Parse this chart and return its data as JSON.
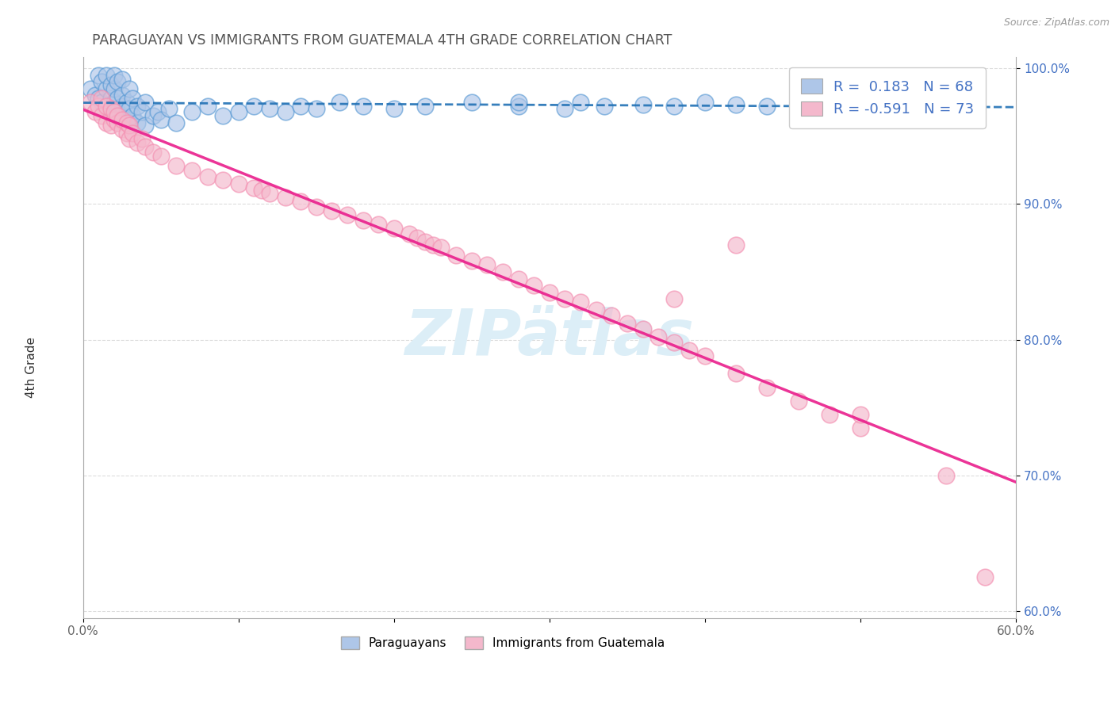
{
  "title": "PARAGUAYAN VS IMMIGRANTS FROM GUATEMALA 4TH GRADE CORRELATION CHART",
  "source": "Source: ZipAtlas.com",
  "ylabel": "4th Grade",
  "xmin": 0.0,
  "xmax": 0.6,
  "ymin": 0.595,
  "ymax": 1.008,
  "yticks": [
    0.6,
    0.7,
    0.8,
    0.9,
    1.0
  ],
  "ytick_labels": [
    "60.0%",
    "70.0%",
    "80.0%",
    "90.0%",
    "100.0%"
  ],
  "xticks": [
    0.0,
    0.1,
    0.2,
    0.3,
    0.4,
    0.5,
    0.6
  ],
  "xtick_labels": [
    "0.0%",
    "",
    "",
    "",
    "",
    "",
    "60.0%"
  ],
  "legend_line1": "R =  0.183   N = 68",
  "legend_line2": "R = -0.591   N = 73",
  "blue_face": "#aec6e8",
  "blue_edge": "#5b9bd5",
  "pink_face": "#f4b8cc",
  "pink_edge": "#f48fb1",
  "blue_line": "#2171b5",
  "pink_line": "#e91e8c",
  "legend_text_color": "#4472c4",
  "watermark_color": "#dceef7",
  "blue_x": [
    0.005,
    0.008,
    0.01,
    0.01,
    0.012,
    0.012,
    0.015,
    0.015,
    0.015,
    0.018,
    0.018,
    0.018,
    0.02,
    0.02,
    0.02,
    0.02,
    0.022,
    0.022,
    0.022,
    0.025,
    0.025,
    0.025,
    0.025,
    0.028,
    0.028,
    0.03,
    0.03,
    0.03,
    0.032,
    0.032,
    0.035,
    0.035,
    0.038,
    0.04,
    0.04,
    0.045,
    0.048,
    0.05,
    0.055,
    0.06,
    0.07,
    0.08,
    0.09,
    0.1,
    0.11,
    0.12,
    0.13,
    0.14,
    0.15,
    0.165,
    0.18,
    0.2,
    0.22,
    0.25,
    0.28,
    0.32,
    0.36,
    0.4,
    0.44,
    0.55,
    0.57,
    0.31,
    0.335,
    0.28,
    0.38,
    0.42,
    0.46,
    0.49
  ],
  "blue_y": [
    0.985,
    0.98,
    0.978,
    0.995,
    0.975,
    0.99,
    0.972,
    0.985,
    0.995,
    0.97,
    0.978,
    0.988,
    0.965,
    0.975,
    0.985,
    0.995,
    0.968,
    0.978,
    0.99,
    0.965,
    0.972,
    0.98,
    0.992,
    0.962,
    0.975,
    0.96,
    0.97,
    0.985,
    0.965,
    0.978,
    0.96,
    0.972,
    0.968,
    0.958,
    0.975,
    0.965,
    0.968,
    0.962,
    0.97,
    0.96,
    0.968,
    0.972,
    0.965,
    0.968,
    0.972,
    0.97,
    0.968,
    0.972,
    0.97,
    0.975,
    0.972,
    0.97,
    0.972,
    0.975,
    0.972,
    0.975,
    0.973,
    0.975,
    0.972,
    0.975,
    0.975,
    0.97,
    0.972,
    0.975,
    0.972,
    0.973,
    0.975,
    0.975
  ],
  "pink_x": [
    0.005,
    0.008,
    0.01,
    0.012,
    0.012,
    0.015,
    0.015,
    0.018,
    0.018,
    0.02,
    0.02,
    0.022,
    0.022,
    0.025,
    0.025,
    0.028,
    0.028,
    0.03,
    0.03,
    0.032,
    0.035,
    0.038,
    0.04,
    0.045,
    0.05,
    0.06,
    0.07,
    0.08,
    0.09,
    0.1,
    0.11,
    0.115,
    0.12,
    0.13,
    0.14,
    0.15,
    0.16,
    0.17,
    0.18,
    0.19,
    0.2,
    0.21,
    0.215,
    0.22,
    0.225,
    0.23,
    0.24,
    0.25,
    0.26,
    0.27,
    0.28,
    0.29,
    0.3,
    0.31,
    0.32,
    0.33,
    0.34,
    0.35,
    0.36,
    0.37,
    0.38,
    0.39,
    0.4,
    0.42,
    0.44,
    0.46,
    0.48,
    0.5,
    0.38,
    0.42,
    0.5,
    0.555,
    0.58
  ],
  "pink_y": [
    0.975,
    0.968,
    0.972,
    0.965,
    0.978,
    0.96,
    0.972,
    0.958,
    0.97,
    0.962,
    0.968,
    0.96,
    0.965,
    0.955,
    0.962,
    0.952,
    0.96,
    0.948,
    0.958,
    0.952,
    0.945,
    0.948,
    0.942,
    0.938,
    0.935,
    0.928,
    0.925,
    0.92,
    0.918,
    0.915,
    0.912,
    0.91,
    0.908,
    0.905,
    0.902,
    0.898,
    0.895,
    0.892,
    0.888,
    0.885,
    0.882,
    0.878,
    0.875,
    0.872,
    0.87,
    0.868,
    0.862,
    0.858,
    0.855,
    0.85,
    0.845,
    0.84,
    0.835,
    0.83,
    0.828,
    0.822,
    0.818,
    0.812,
    0.808,
    0.802,
    0.798,
    0.792,
    0.788,
    0.775,
    0.765,
    0.755,
    0.745,
    0.735,
    0.83,
    0.87,
    0.745,
    0.7,
    0.625
  ]
}
